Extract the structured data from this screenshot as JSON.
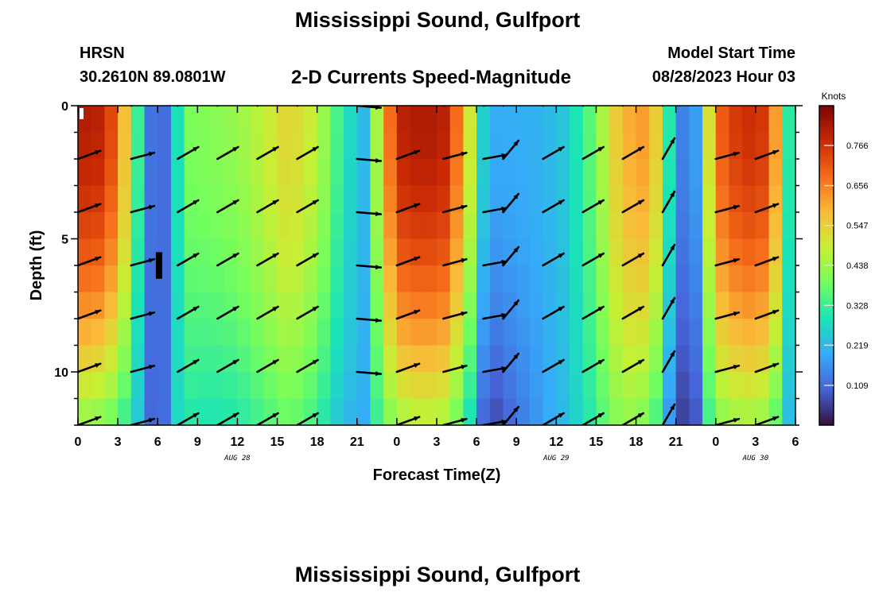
{
  "header": {
    "title": "Mississippi Sound, Gulfport",
    "station": "HRSN",
    "coordinates": "30.2610N  89.0801W",
    "subtitle": "2-D Currents Speed-Magnitude",
    "model_start_label": "Model Start Time",
    "model_start_value": "08/28/2023 Hour 03"
  },
  "footer": {
    "title": "Mississippi Sound, Gulfport"
  },
  "chart_data": {
    "type": "heatmap",
    "title": "2-D Currents Speed-Magnitude",
    "xlabel": "Forecast Time(Z)",
    "ylabel": "Depth (ft)",
    "x_start_hours": 0,
    "x_end_hours": 54,
    "y_range_ft": [
      0,
      12
    ],
    "y_inverted": true,
    "x_ticks": [
      "0",
      "3",
      "6",
      "9",
      "12",
      "15",
      "18",
      "21",
      "0",
      "3",
      "6",
      "9",
      "12",
      "15",
      "18",
      "21",
      "0",
      "3",
      "6"
    ],
    "y_ticks": [
      0,
      5,
      10
    ],
    "date_labels": [
      {
        "text": "AUG 28",
        "hour": 12
      },
      {
        "text": "AUG 29",
        "hour": 36
      },
      {
        "text": "AUG 30",
        "hour": 51
      }
    ],
    "colorbar": {
      "label": "Knots",
      "ticks": [
        0.109,
        0.219,
        0.328,
        0.438,
        0.547,
        0.656,
        0.766
      ],
      "min": 0.0,
      "max": 0.875
    },
    "colorscale": [
      "#30123b",
      "#4662d7",
      "#36aaf9",
      "#1ae4b6",
      "#72fe5e",
      "#c8ef34",
      "#faba39",
      "#f66b19",
      "#ca2a04",
      "#7a0403"
    ],
    "speed_profile": {
      "hours": [
        0,
        1.5,
        3,
        3.8,
        4.5,
        5.3,
        6.2,
        7,
        7.8,
        8.5,
        10,
        12,
        14,
        15.5,
        17,
        18.5,
        20,
        21.5,
        22.3,
        23,
        24.5,
        26,
        27.5,
        28.5,
        29.5,
        30.5,
        31.5,
        33,
        35,
        36.5,
        38,
        39.2,
        40.3,
        41.5,
        42.5,
        43.5,
        44.2,
        45,
        45.8,
        46.5,
        47.3,
        48,
        50,
        51.5,
        52.5,
        53.3,
        54
      ],
      "surface": [
        0.81,
        0.8,
        0.7,
        0.5,
        0.33,
        0.14,
        0.06,
        0.2,
        0.34,
        0.4,
        0.41,
        0.43,
        0.48,
        0.53,
        0.52,
        0.43,
        0.3,
        0.22,
        0.38,
        0.62,
        0.8,
        0.82,
        0.8,
        0.68,
        0.5,
        0.26,
        0.2,
        0.2,
        0.21,
        0.24,
        0.32,
        0.42,
        0.54,
        0.6,
        0.62,
        0.55,
        0.38,
        0.18,
        0.12,
        0.18,
        0.45,
        0.68,
        0.78,
        0.76,
        0.62,
        0.35,
        0.22
      ],
      "bottom": [
        0.42,
        0.4,
        0.36,
        0.3,
        0.24,
        0.12,
        0.05,
        0.22,
        0.3,
        0.3,
        0.29,
        0.3,
        0.34,
        0.37,
        0.36,
        0.3,
        0.22,
        0.2,
        0.3,
        0.38,
        0.44,
        0.46,
        0.44,
        0.38,
        0.28,
        0.1,
        0.07,
        0.12,
        0.18,
        0.22,
        0.28,
        0.34,
        0.4,
        0.42,
        0.4,
        0.34,
        0.22,
        0.08,
        0.04,
        0.08,
        0.3,
        0.4,
        0.44,
        0.42,
        0.36,
        0.24,
        0.18
      ]
    },
    "vector_depths_ft": [
      0,
      2,
      4,
      6,
      8,
      10,
      12
    ],
    "vectors": [
      {
        "hour": 0,
        "angle": 20
      },
      {
        "hour": 4,
        "angle": 15
      },
      {
        "hour": 7.5,
        "angle": 30
      },
      {
        "hour": 10.5,
        "angle": 30
      },
      {
        "hour": 13.5,
        "angle": 30
      },
      {
        "hour": 16.5,
        "angle": 30
      },
      {
        "hour": 21,
        "angle": -5
      },
      {
        "hour": 24,
        "angle": 20
      },
      {
        "hour": 27.5,
        "angle": 15
      },
      {
        "hour": 30.5,
        "angle": 10
      },
      {
        "hour": 32,
        "angle": 50
      },
      {
        "hour": 35,
        "angle": 30
      },
      {
        "hour": 38,
        "angle": 30
      },
      {
        "hour": 41,
        "angle": 30
      },
      {
        "hour": 44,
        "angle": 60
      },
      {
        "hour": 48,
        "angle": 15
      },
      {
        "hour": 51,
        "angle": 20
      }
    ],
    "current_time_marker_hour": 6.1
  }
}
